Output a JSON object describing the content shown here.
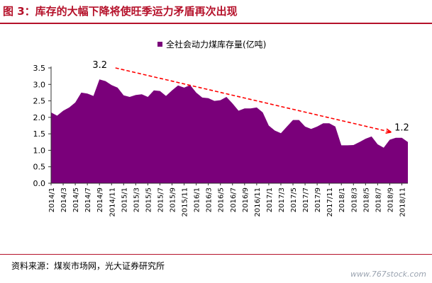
{
  "title": "图 3：库存的大幅下降将使旺季运力矛盾再次出现",
  "source": "资料来源：煤炭市场网，光大证券研究所",
  "watermark": "www.767stock.com",
  "colors": {
    "area": "#7a007a",
    "trend": "#ff0000",
    "title": "#b5112a"
  },
  "chart_data": {
    "type": "area",
    "legend": [
      "全社会动力煤库存量(亿吨)"
    ],
    "series": [
      {
        "name": "全社会动力煤库存量(亿吨)",
        "values": [
          2.15,
          2.05,
          2.2,
          2.3,
          2.45,
          2.75,
          2.72,
          2.65,
          3.15,
          3.1,
          2.98,
          2.9,
          2.67,
          2.62,
          2.68,
          2.7,
          2.62,
          2.82,
          2.8,
          2.65,
          2.82,
          2.97,
          2.9,
          2.98,
          2.75,
          2.6,
          2.58,
          2.5,
          2.52,
          2.62,
          2.42,
          2.2,
          2.27,
          2.27,
          2.3,
          2.15,
          1.75,
          1.6,
          1.52,
          1.72,
          1.92,
          1.92,
          1.72,
          1.65,
          1.72,
          1.82,
          1.82,
          1.72,
          1.15,
          1.15,
          1.16,
          1.25,
          1.35,
          1.42,
          1.18,
          1.08,
          1.32,
          1.38,
          1.38,
          1.25
        ]
      }
    ],
    "x_tick_labels": [
      "2014/1",
      "2014/3",
      "2014/5",
      "2014/7",
      "2014/9",
      "2014/11",
      "2015/1",
      "2015/3",
      "2015/5",
      "2015/7",
      "2015/9",
      "2015/11",
      "2016/1",
      "2016/3",
      "2016/5",
      "2016/7",
      "2016/9",
      "2016/11",
      "2017/1",
      "2017/3",
      "2017/5",
      "2017/7",
      "2017/9",
      "2017/11",
      "2018/1",
      "2018/3",
      "2018/5",
      "2018/7",
      "2018/9",
      "2018/11"
    ],
    "y_ticks": [
      "0.0",
      "0.5",
      "1.0",
      "1.5",
      "2.0",
      "2.5",
      "3.0",
      "3.5"
    ],
    "ylim": [
      0,
      3.5
    ],
    "annotations": [
      {
        "text": "3.2",
        "x_index": 9,
        "y": 3.2
      },
      {
        "text": "1.2",
        "x_index": 58,
        "y": 1.2
      }
    ],
    "trend_line": {
      "from": {
        "x_index": 9,
        "y": 3.5
      },
      "to": {
        "x_index": 56,
        "y": 1.55
      }
    },
    "grid": false,
    "legend_position": "top-center"
  }
}
